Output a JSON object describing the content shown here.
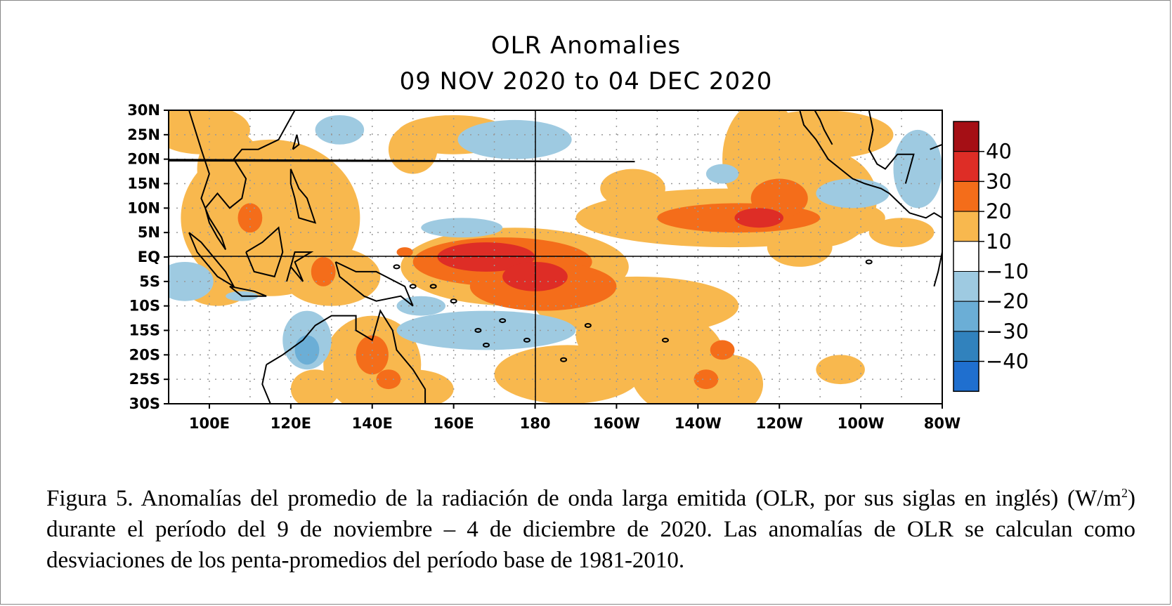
{
  "chart_data": {
    "type": "heatmap",
    "title": "OLR Anomalies",
    "subtitle": "09 NOV 2020 to 04 DEC 2020",
    "x_ticks": [
      "100E",
      "120E",
      "140E",
      "160E",
      "180",
      "160W",
      "140W",
      "120W",
      "100W",
      "80W"
    ],
    "y_ticks": [
      "30N",
      "25N",
      "20N",
      "15N",
      "10N",
      "5N",
      "EQ",
      "5S",
      "10S",
      "15S",
      "20S",
      "25S",
      "30S"
    ],
    "x_range": [
      "90E",
      "80W"
    ],
    "y_range": [
      "30S",
      "30N"
    ],
    "grid": "dotted",
    "colorbar": {
      "labels": [
        "40",
        "30",
        "20",
        "10",
        "−10",
        "−20",
        "−30",
        "−40"
      ],
      "colors": [
        "#a50f15",
        "#de2d26",
        "#f46d1a",
        "#f8b84e",
        "#ffffff",
        "#9ecae1",
        "#6baed6",
        "#3182bd",
        "#1f6fcf"
      ]
    },
    "features": [
      {
        "name": "equatorial positive maximum",
        "lon_range": [
          150,
          195
        ],
        "lat_range": [
          -12,
          5
        ],
        "peak": 30
      },
      {
        "name": "positive band",
        "lon_range": [
          200,
          250
        ],
        "lat_range": [
          4,
          16
        ],
        "peak": 30
      },
      {
        "name": "maritime continent positive",
        "lon_range": [
          95,
          145
        ],
        "lat_range": [
          -8,
          20
        ],
        "peak": 20
      },
      {
        "name": "south pacific convergence positive",
        "lon_range": [
          170,
          230
        ],
        "lat_range": [
          -30,
          -10
        ],
        "peak": 20
      },
      {
        "name": "indian ocean negative",
        "lon_range": [
          90,
          100
        ],
        "lat_range": [
          -10,
          -2
        ],
        "peak": -10
      },
      {
        "name": "northwest australia negative",
        "lon_range": [
          118,
          128
        ],
        "lat_range": [
          -22,
          -14
        ],
        "peak": -20
      },
      {
        "name": "south pacific negative band",
        "lon_range": [
          145,
          190
        ],
        "lat_range": [
          -22,
          -10
        ],
        "peak": -10
      },
      {
        "name": "north central pacific negative",
        "lon_range": [
          160,
          190
        ],
        "lat_range": [
          18,
          29
        ],
        "peak": -10
      },
      {
        "name": "gulf of mexico negative",
        "lon_range": [
          268,
          280
        ],
        "lat_range": [
          12,
          25
        ],
        "peak": -10
      }
    ]
  },
  "caption": {
    "line1": "Figura 5. Anomalías del promedio de la radiación de onda larga emitida (OLR, por sus siglas en",
    "line2a": "inglés) (W/m",
    "line2sup": "2",
    "line2b": ") durante el período del 9 de noviembre – 4 de diciembre de 2020.  Las anomalías",
    "line3": "de OLR se calculan como desviaciones de los penta-promedios  del período base de 1981-2010."
  }
}
